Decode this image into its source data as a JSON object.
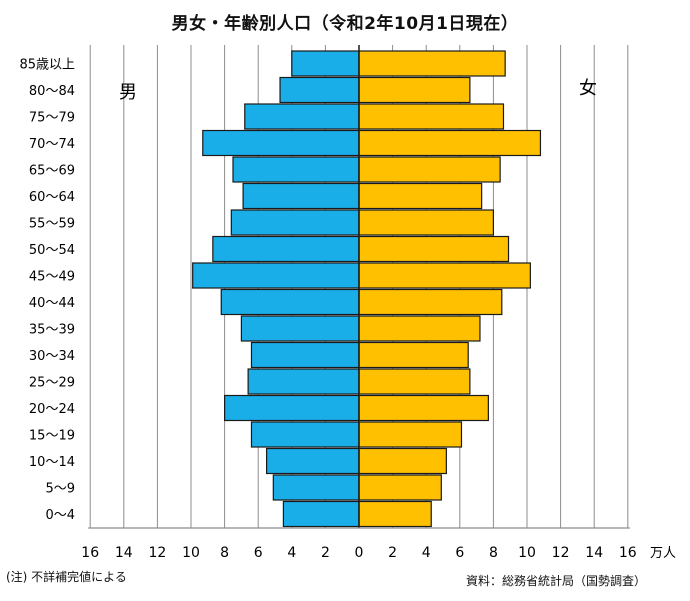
{
  "title": "男女・年齢別人口（令和2年10月1日現在）",
  "note": "(注) 不詳補完値による",
  "source": "資料：総務省統計局（国勢調査）",
  "colors": {
    "male": "#1AAEE8",
    "female": "#FFC000",
    "grid": "#8c8c8c",
    "axis": "#1a1a1a"
  },
  "chart_data": {
    "type": "bar",
    "orientation": "population-pyramid",
    "title": "男女・年齢別人口（令和2年10月1日現在）",
    "unit": "万人",
    "categories": [
      "85歳以上",
      "80～84",
      "75～79",
      "70～74",
      "65～69",
      "60～64",
      "55～59",
      "50～54",
      "45～49",
      "40～44",
      "35～39",
      "30～34",
      "25～29",
      "20～24",
      "15～19",
      "10～14",
      "5～9",
      "0～4"
    ],
    "series": [
      {
        "name": "男",
        "values": [
          4.0,
          4.7,
          6.8,
          9.3,
          7.5,
          6.9,
          7.6,
          8.7,
          9.9,
          8.2,
          7.0,
          6.4,
          6.6,
          8.0,
          6.4,
          5.5,
          5.1,
          4.5
        ]
      },
      {
        "name": "女",
        "values": [
          8.7,
          6.6,
          8.6,
          10.8,
          8.4,
          7.3,
          8.0,
          8.9,
          10.2,
          8.5,
          7.2,
          6.5,
          6.6,
          7.7,
          6.1,
          5.2,
          4.9,
          4.3
        ]
      }
    ],
    "x_ticks": [
      "16",
      "14",
      "12",
      "10",
      "8",
      "6",
      "4",
      "2",
      "0",
      "2",
      "4",
      "6",
      "8",
      "10",
      "12",
      "14",
      "16"
    ],
    "xlim": [
      -16,
      16
    ],
    "grid": true
  }
}
